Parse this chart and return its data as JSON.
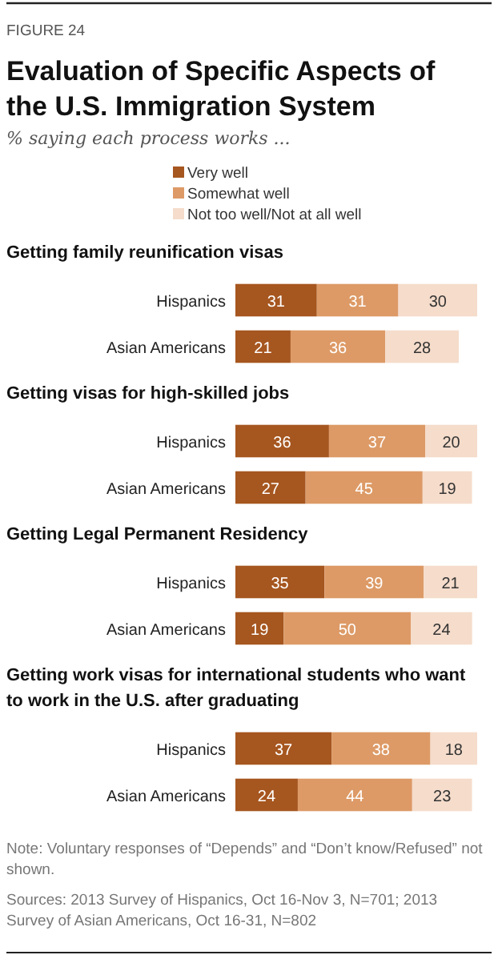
{
  "chart_data": [
    {
      "type": "other",
      "title": "Evaluation of Specific Aspects of the U.S. Immigration System",
      "subtitle": "% saying each process works ...",
      "annotations": [
        "FIGURE 24"
      ]
    },
    {
      "type": "bar",
      "orientation": "horizontal",
      "stacked": true,
      "data_labels": true,
      "legend": "top",
      "title": "Getting family reunification visas",
      "categories": [
        "Hispanics",
        "Asian Americans"
      ],
      "series": [
        {
          "name": "Very well",
          "color": "#a6561f",
          "values": [
            31,
            21
          ]
        },
        {
          "name": "Somewhat well",
          "color": "#dd9a66",
          "values": [
            31,
            36
          ]
        },
        {
          "name": "Not too well/Not at all well",
          "color": "#f5dccb",
          "values": [
            30,
            28
          ]
        }
      ]
    },
    {
      "type": "bar",
      "orientation": "horizontal",
      "stacked": true,
      "data_labels": true,
      "title": "Getting visas for high-skilled jobs",
      "categories": [
        "Hispanics",
        "Asian Americans"
      ],
      "series": [
        {
          "color": "#a6561f",
          "values": [
            36,
            27
          ]
        },
        {
          "color": "#dd9a66",
          "values": [
            37,
            45
          ]
        },
        {
          "color": "#f5dccb",
          "values": [
            20,
            19
          ]
        }
      ]
    },
    {
      "type": "bar",
      "orientation": "horizontal",
      "stacked": true,
      "data_labels": true,
      "title": "Getting Legal Permanent Residency",
      "categories": [
        "Hispanics",
        "Asian Americans"
      ],
      "series": [
        {
          "color": "#a6561f",
          "values": [
            35,
            19
          ]
        },
        {
          "color": "#dd9a66",
          "values": [
            39,
            50
          ]
        },
        {
          "color": "#f5dccb",
          "values": [
            21,
            24
          ]
        }
      ]
    },
    {
      "type": "bar",
      "orientation": "horizontal",
      "stacked": true,
      "data_labels": true,
      "title": "Getting work visas for international students who want to work in the U.S. after graduating",
      "categories": [
        "Hispanics",
        "Asian Americans"
      ],
      "series": [
        {
          "color": "#a6561f",
          "values": [
            37,
            24
          ]
        },
        {
          "color": "#dd9a66",
          "values": [
            38,
            44
          ]
        },
        {
          "color": "#f5dccb",
          "values": [
            18,
            23
          ]
        }
      ],
      "annotations": [
        "Note: Voluntary responses of “Depends” and “Don’t know/Refused” not shown.",
        "Sources: 2013 Survey of Hispanics, Oct 16-Nov 3, N=701; 2013 Survey of Asian Americans, Oct 16-31, N=802"
      ]
    }
  ]
}
